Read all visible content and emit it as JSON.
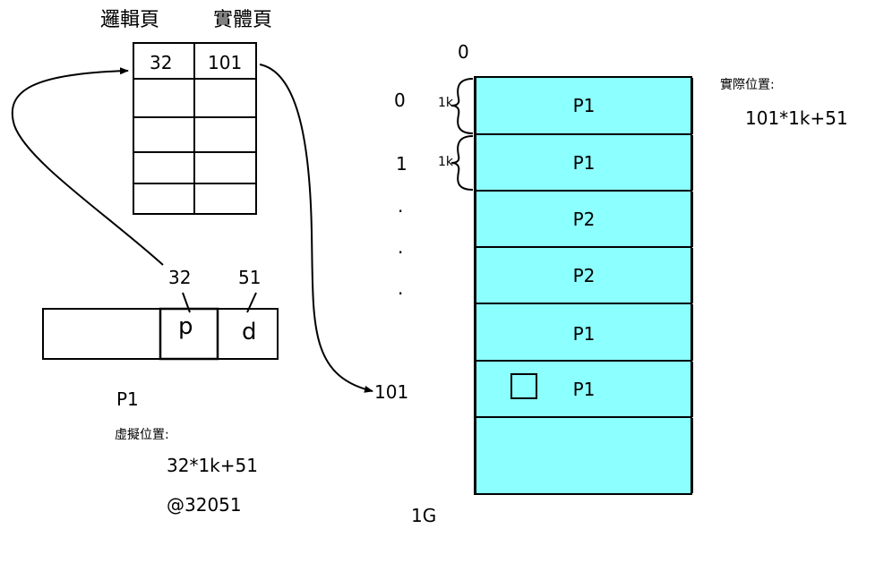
{
  "page_table": {
    "col_headers": [
      "邏輯頁",
      "實體頁"
    ],
    "row1": [
      "32",
      "101"
    ]
  },
  "virtual_address": {
    "p_value": "32",
    "d_value": "51",
    "p_label": "p",
    "d_label": "d",
    "process": "P1",
    "caption": "虛擬位置:",
    "formula": "32*1k+51",
    "address": "@32051"
  },
  "memory": {
    "top_label": "0",
    "row_indices": [
      "0",
      "1",
      ".",
      ".",
      "."
    ],
    "frame_size": [
      "1k",
      "1k"
    ],
    "blocks": [
      "P1",
      "P1",
      "P2",
      "P2",
      "P1",
      "P1",
      ""
    ],
    "target_frame": "101",
    "bottom_label": "1G",
    "caption": "實際位置:",
    "formula": "101*1k+51"
  },
  "colors": {
    "memory_fill": "#8cffff"
  }
}
